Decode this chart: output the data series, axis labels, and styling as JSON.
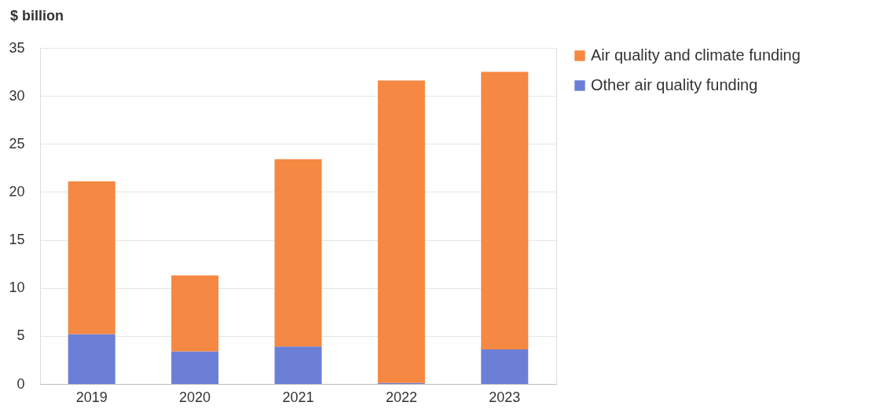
{
  "chart_data": {
    "type": "bar",
    "ylabel": "$ billion",
    "stacked": true,
    "categories": [
      "2019",
      "2020",
      "2021",
      "2022",
      "2023"
    ],
    "series": [
      {
        "name": "Other air quality funding",
        "color": "#6b7fd7",
        "values": [
          5.2,
          3.4,
          3.9,
          0.1,
          3.6
        ]
      },
      {
        "name": "Air quality and climate funding",
        "color": "#f58842",
        "values": [
          15.9,
          7.9,
          19.5,
          31.5,
          28.9
        ]
      }
    ],
    "ylim": [
      0,
      35
    ],
    "yticks": [
      0,
      5,
      10,
      15,
      20,
      25,
      30,
      35
    ],
    "grid": "y",
    "legend": "right"
  }
}
